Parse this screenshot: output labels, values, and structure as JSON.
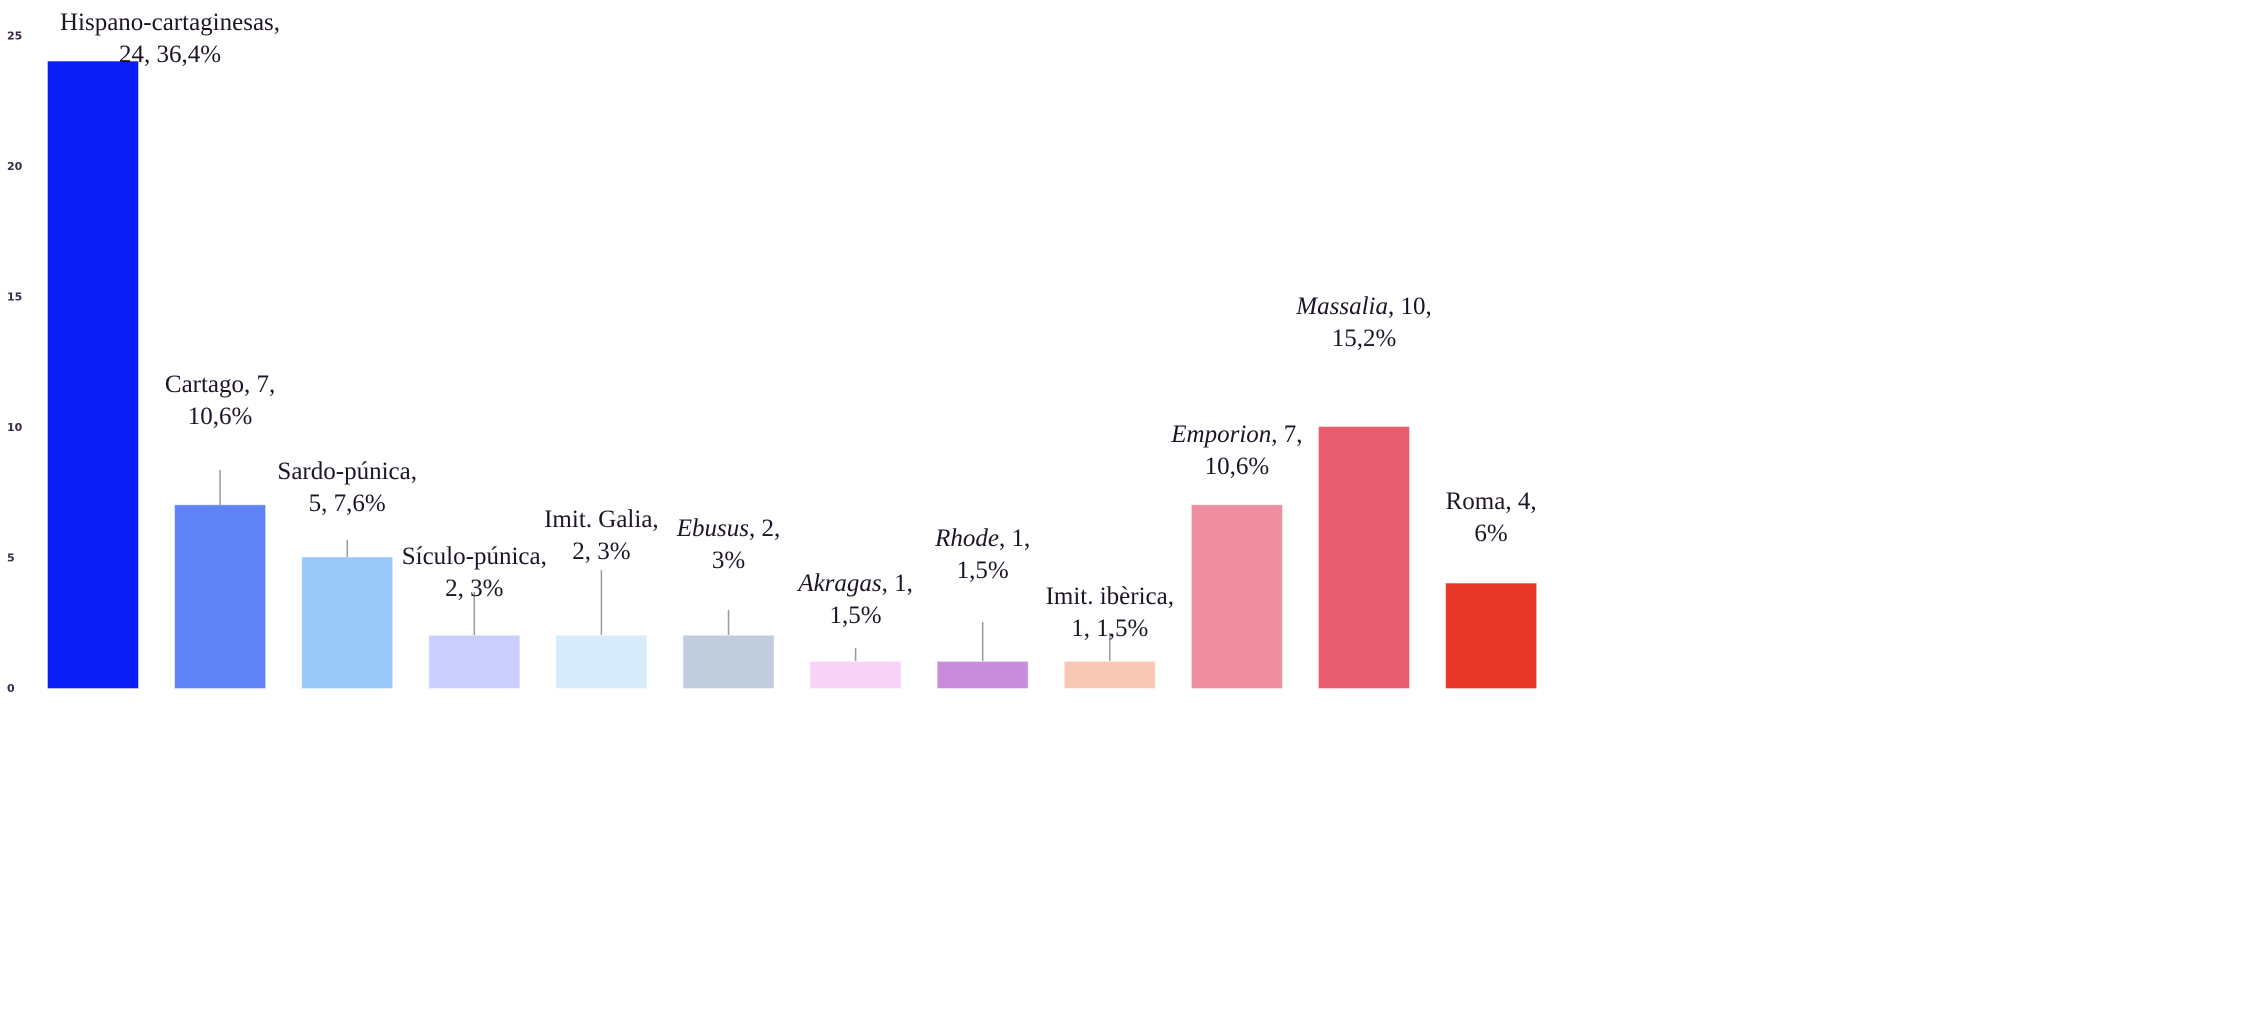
{
  "chart_data": {
    "type": "bar",
    "title": "",
    "xlabel": "",
    "ylabel": "",
    "ylim": [
      0,
      25
    ],
    "yticks": [
      0,
      5,
      10,
      15,
      20,
      25
    ],
    "grid": false,
    "categories": [
      "Hispano-cartaginesas",
      "Cartago",
      "Sardo-púnica",
      "Sículo-púnica",
      "Imit. Galia",
      "Ebusus",
      "Akragas",
      "Rhode",
      "Imit. ibèrica",
      "Emporion",
      "Massalia",
      "Roma"
    ],
    "values": [
      24,
      7,
      5,
      2,
      2,
      2,
      1,
      1,
      1,
      7,
      10,
      4
    ],
    "percents": [
      "36,4%",
      "10,6%",
      "7,6%",
      "3%",
      "3%",
      "3%",
      "1,5%",
      "1,5%",
      "1,5%",
      "10,6%",
      "15,2%",
      "6%"
    ],
    "colors": [
      "#0a1ff5",
      "#5f82f5",
      "#99c9f9",
      "#c9cffa",
      "#d7ecfb",
      "#c1cddd",
      "#f8d3f5",
      "#c98ddd",
      "#f6c8b5",
      "#ef8ea0",
      "#e85d70",
      "#e83628"
    ],
    "data_labels": [
      {
        "name": "Hispano-cartaginesas",
        "italic": false,
        "line1_rest": ",",
        "line2": "24, 36,4%"
      },
      {
        "name": "Cartago",
        "italic": false,
        "line1_rest": ", 7,",
        "line2": "10,6%"
      },
      {
        "name": "Sardo-púnica",
        "italic": false,
        "line1_rest": ",",
        "line2": "5, 7,6%"
      },
      {
        "name": "Sículo-púnica",
        "italic": false,
        "line1_rest": ",",
        "line2": "2, 3%"
      },
      {
        "name": "Imit. Galia",
        "italic": false,
        "line1_rest": ",",
        "line2": "2, 3%"
      },
      {
        "name": "Ebusus",
        "italic": true,
        "line1_rest": ", 2,",
        "line2": "3%"
      },
      {
        "name": "Akragas",
        "italic": true,
        "line1_rest": ", 1,",
        "line2": "1,5%"
      },
      {
        "name": "Rhode",
        "italic": true,
        "line1_rest": ", 1,",
        "line2": "1,5%"
      },
      {
        "name": "Imit. ibèrica",
        "italic": false,
        "line1_rest": ",",
        "line2": "1, 1,5%"
      },
      {
        "name": "Emporion",
        "italic": true,
        "line1_rest": ", 7,",
        "line2": "10,6%"
      },
      {
        "name": "Massalia",
        "italic": true,
        "line1_rest": ", 10,",
        "line2": "15,2%"
      },
      {
        "name": "Roma",
        "italic": false,
        "line1_rest": ", 4,",
        "line2": "6%"
      }
    ]
  }
}
